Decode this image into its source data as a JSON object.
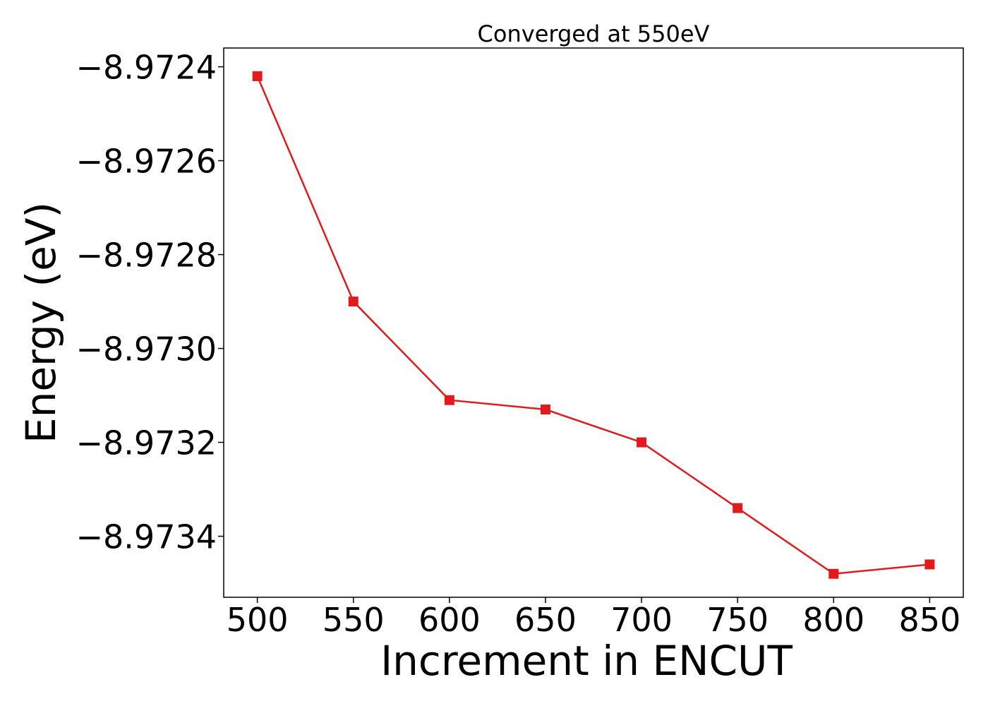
{
  "chart_data": {
    "type": "line",
    "title": "Converged at 550eV",
    "xlabel": "Increment in ENCUT",
    "ylabel": "Energy (eV)",
    "x": [
      500,
      550,
      600,
      650,
      700,
      750,
      800,
      850
    ],
    "series": [
      {
        "values": [
          -8.97242,
          -8.9729,
          -8.97311,
          -8.97313,
          -8.9732,
          -8.97334,
          -8.97348,
          -8.97346
        ],
        "color": "#e31a1c",
        "marker": "square"
      }
    ],
    "xticks": [
      500,
      550,
      600,
      650,
      700,
      750,
      800,
      850
    ],
    "xtick_labels": [
      "500",
      "550",
      "600",
      "650",
      "700",
      "750",
      "800",
      "850"
    ],
    "yticks": [
      -8.9724,
      -8.9726,
      -8.9728,
      -8.973,
      -8.9732,
      -8.9734
    ],
    "ytick_labels": [
      "−8.9724",
      "−8.9726",
      "−8.9728",
      "−8.9730",
      "−8.9732",
      "−8.9734"
    ],
    "xlim": [
      482.5,
      867.5
    ],
    "ylim": [
      -8.97353,
      -8.97236
    ],
    "grid": false,
    "legend": "none"
  }
}
